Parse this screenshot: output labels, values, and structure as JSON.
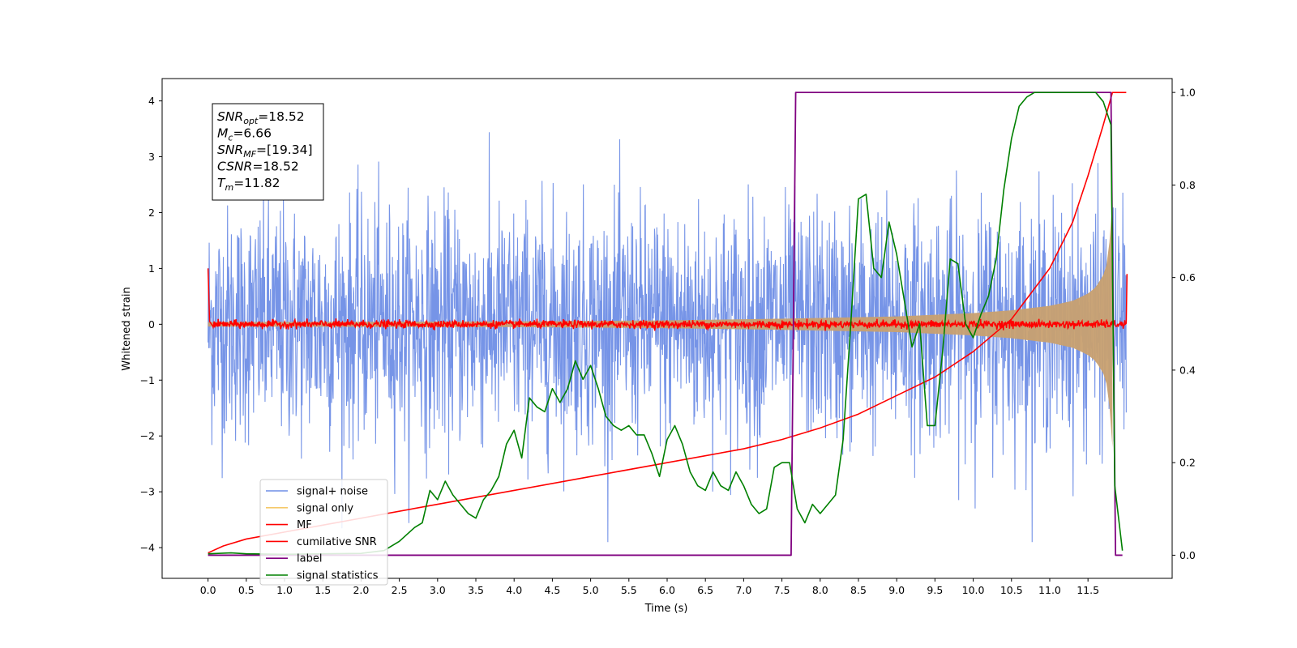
{
  "chart_data": {
    "type": "line",
    "xlabel": "Time (s)",
    "ylabel": "Whitened strain",
    "xlim": [
      -0.6,
      12.6
    ],
    "ylim_left": [
      -4.55,
      4.4
    ],
    "ylim_right": [
      -0.05,
      1.03
    ],
    "x_ticks": [
      0.0,
      0.5,
      1.0,
      1.5,
      2.0,
      2.5,
      3.0,
      3.5,
      4.0,
      4.5,
      5.0,
      5.5,
      6.0,
      6.5,
      7.0,
      7.5,
      8.0,
      8.5,
      9.0,
      9.5,
      10.0,
      10.5,
      11.0,
      11.5
    ],
    "x_tick_labels": [
      "0.0",
      "0.5",
      "1.0",
      "1.5",
      "2.0",
      "2.5",
      "3.0",
      "3.5",
      "4.0",
      "4.5",
      "5.0",
      "5.5",
      "6.0",
      "6.5",
      "7.0",
      "7.5",
      "8.0",
      "8.5",
      "9.0",
      "9.5",
      "10.0",
      "10.5",
      "11.0",
      "11.5"
    ],
    "y_left_ticks": [
      -4,
      -3,
      -2,
      -1,
      0,
      1,
      2,
      3,
      4
    ],
    "y_left_tick_labels": [
      "−4",
      "−3",
      "−2",
      "−1",
      "0",
      "1",
      "2",
      "3",
      "4"
    ],
    "y_right_ticks": [
      0.0,
      0.2,
      0.4,
      0.6,
      0.8,
      1.0
    ],
    "y_right_tick_labels": [
      "0.0",
      "0.2",
      "0.4",
      "0.6",
      "0.8",
      "1.0"
    ],
    "legend_position": "lower-left",
    "legend": [
      {
        "label": "signal+ noise",
        "color": "#6f8ee6"
      },
      {
        "label": "signal only",
        "color": "#f5c96a"
      },
      {
        "label": "MF",
        "color": "#ff0000"
      },
      {
        "label": "cumilative SNR",
        "color": "#ff0000"
      },
      {
        "label": "label",
        "color": "#800080"
      },
      {
        "label": "signal statistics",
        "color": "#008000"
      }
    ],
    "annotation": [
      {
        "base": "SNR",
        "sub": "opt",
        "value": "=18.52"
      },
      {
        "base": "M",
        "sub": "c",
        "value": "=6.66"
      },
      {
        "base": "SNR",
        "sub": "MF",
        "value": "=[19.34]"
      },
      {
        "base": "CSNR",
        "sub": "",
        "value": "=18.52"
      },
      {
        "base": "T",
        "sub": "m",
        "value": "=11.82"
      }
    ],
    "series": [
      {
        "name": "signal+ noise",
        "axis": "left",
        "color": "#6f8ee6",
        "description_envelope": {
          "x": [
            0,
            12
          ],
          "upper": [
            2.6,
            2.6
          ],
          "lower": [
            -2.7,
            -2.7
          ],
          "max_spike": 3.6,
          "min_spike": -3.9
        }
      },
      {
        "name": "signal only",
        "axis": "left",
        "color": "#c8a070",
        "envelope": {
          "x": [
            0.0,
            4.0,
            6.0,
            7.5,
            9.0,
            10.0,
            10.5,
            11.0,
            11.3,
            11.5,
            11.6,
            11.7,
            11.75,
            11.8,
            11.82
          ],
          "amp": [
            0.04,
            0.05,
            0.07,
            0.1,
            0.14,
            0.2,
            0.25,
            0.33,
            0.42,
            0.55,
            0.66,
            0.88,
            1.1,
            1.7,
            2.2
          ]
        }
      },
      {
        "name": "MF",
        "axis": "left",
        "color": "#ff0000",
        "points": {
          "x": [
            0.0,
            0.02,
            0.06,
            12.0,
            12.01
          ],
          "y": [
            1.0,
            0.05,
            0.0,
            0.0,
            0.9
          ]
        }
      },
      {
        "name": "cumilative SNR",
        "axis": "right",
        "color": "#ff0000",
        "x": [
          0.0,
          0.2,
          0.5,
          1.0,
          1.5,
          2.0,
          3.0,
          4.0,
          5.0,
          6.0,
          7.0,
          7.5,
          8.0,
          8.5,
          9.0,
          9.5,
          10.0,
          10.5,
          11.0,
          11.3,
          11.5,
          11.7,
          11.82,
          11.9,
          12.0
        ],
        "y": [
          0.005,
          0.02,
          0.035,
          0.05,
          0.065,
          0.08,
          0.11,
          0.14,
          0.17,
          0.2,
          0.23,
          0.25,
          0.275,
          0.305,
          0.345,
          0.385,
          0.44,
          0.51,
          0.62,
          0.72,
          0.82,
          0.93,
          1.0,
          1.0,
          1.0
        ]
      },
      {
        "name": "label",
        "axis": "right",
        "color": "#800080",
        "x": [
          0.0,
          7.62,
          7.68,
          11.8,
          11.86,
          11.95
        ],
        "y": [
          0.0,
          0.0,
          1.0,
          1.0,
          0.0,
          0.0
        ]
      },
      {
        "name": "signal statistics",
        "axis": "right",
        "color": "#008000",
        "x": [
          0.0,
          0.3,
          0.5,
          1.0,
          1.5,
          2.0,
          2.3,
          2.5,
          2.7,
          2.8,
          2.9,
          3.0,
          3.1,
          3.2,
          3.3,
          3.4,
          3.5,
          3.6,
          3.7,
          3.8,
          3.9,
          4.0,
          4.1,
          4.2,
          4.3,
          4.4,
          4.5,
          4.6,
          4.7,
          4.8,
          4.9,
          5.0,
          5.1,
          5.2,
          5.3,
          5.4,
          5.5,
          5.6,
          5.7,
          5.8,
          5.9,
          6.0,
          6.1,
          6.2,
          6.3,
          6.4,
          6.5,
          6.6,
          6.7,
          6.8,
          6.9,
          7.0,
          7.1,
          7.2,
          7.3,
          7.4,
          7.5,
          7.6,
          7.7,
          7.8,
          7.9,
          8.0,
          8.1,
          8.2,
          8.3,
          8.4,
          8.5,
          8.6,
          8.7,
          8.8,
          8.9,
          9.0,
          9.1,
          9.2,
          9.3,
          9.4,
          9.5,
          9.6,
          9.7,
          9.8,
          9.9,
          10.0,
          10.1,
          10.2,
          10.3,
          10.4,
          10.5,
          10.6,
          10.7,
          10.8,
          11.0,
          11.3,
          11.6,
          11.7,
          11.8,
          11.85,
          11.95
        ],
        "y": [
          0.003,
          0.005,
          0.003,
          0.002,
          0.003,
          0.004,
          0.01,
          0.03,
          0.06,
          0.07,
          0.14,
          0.12,
          0.16,
          0.13,
          0.11,
          0.09,
          0.08,
          0.12,
          0.14,
          0.17,
          0.24,
          0.27,
          0.21,
          0.34,
          0.32,
          0.31,
          0.36,
          0.33,
          0.36,
          0.42,
          0.38,
          0.41,
          0.36,
          0.3,
          0.28,
          0.27,
          0.28,
          0.26,
          0.26,
          0.22,
          0.17,
          0.25,
          0.28,
          0.24,
          0.18,
          0.15,
          0.14,
          0.18,
          0.15,
          0.14,
          0.18,
          0.15,
          0.11,
          0.09,
          0.1,
          0.19,
          0.2,
          0.2,
          0.1,
          0.07,
          0.11,
          0.09,
          0.11,
          0.13,
          0.25,
          0.5,
          0.77,
          0.78,
          0.62,
          0.6,
          0.72,
          0.65,
          0.55,
          0.45,
          0.5,
          0.28,
          0.28,
          0.44,
          0.64,
          0.63,
          0.5,
          0.47,
          0.52,
          0.56,
          0.64,
          0.79,
          0.9,
          0.97,
          0.99,
          1.0,
          1.0,
          1.0,
          1.0,
          0.98,
          0.93,
          0.15,
          0.01
        ]
      }
    ]
  }
}
